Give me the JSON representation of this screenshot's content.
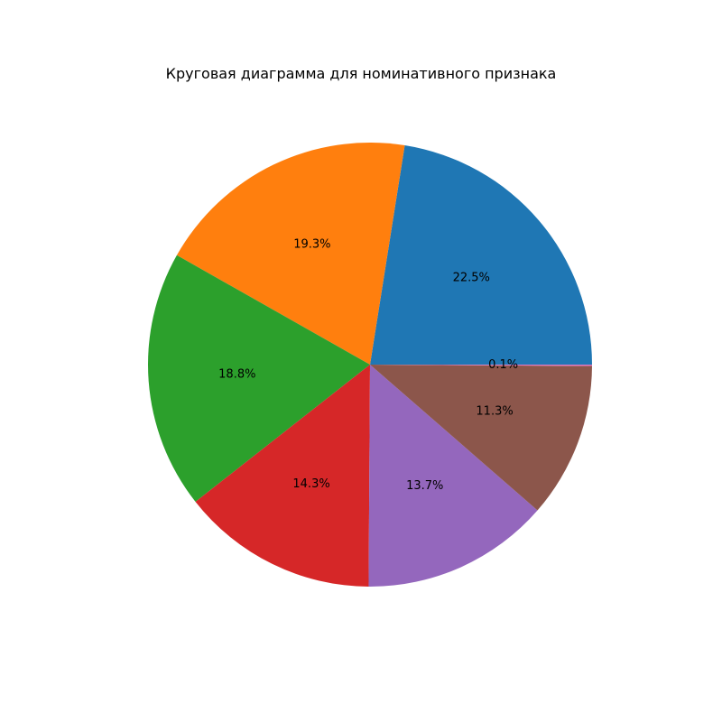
{
  "chart_data": {
    "type": "pie",
    "title": "Круговая диаграмма для номинативного признака",
    "slices": [
      {
        "value": 22.5,
        "label": "22.5%",
        "color": "#1f77b4"
      },
      {
        "value": 19.3,
        "label": "19.3%",
        "color": "#ff7f0e"
      },
      {
        "value": 18.8,
        "label": "18.8%",
        "color": "#2ca02c"
      },
      {
        "value": 14.3,
        "label": "14.3%",
        "color": "#d62728"
      },
      {
        "value": 13.7,
        "label": "13.7%",
        "color": "#9467bd"
      },
      {
        "value": 11.3,
        "label": "11.3%",
        "color": "#8c564b"
      },
      {
        "value": 0.1,
        "label": "0.1%",
        "color": "#e377c2"
      }
    ],
    "start_angle_deg": 0,
    "direction": "counterclockwise",
    "legend": "none"
  }
}
